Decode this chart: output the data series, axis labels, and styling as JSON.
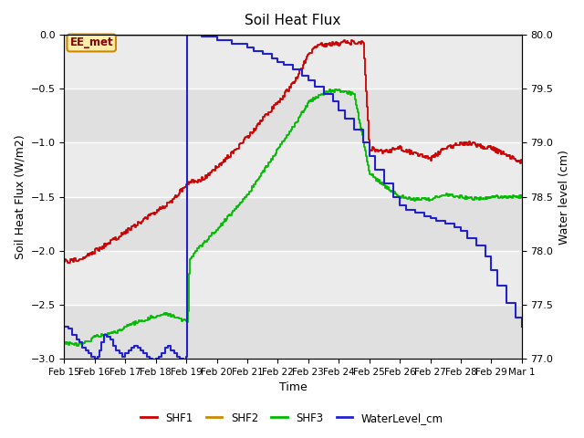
{
  "title": "Soil Heat Flux",
  "xlabel": "Time",
  "ylabel_left": "Soil Heat Flux (W/m2)",
  "ylabel_right": "Water level (cm)",
  "annotation_text": "EE_met",
  "ylim_left": [
    -3.0,
    0.0
  ],
  "ylim_right": [
    77.0,
    80.0
  ],
  "yticks_left": [
    0.0,
    -0.5,
    -1.0,
    -1.5,
    -2.0,
    -2.5,
    -3.0
  ],
  "yticks_right": [
    77.0,
    77.5,
    78.0,
    78.5,
    79.0,
    79.5,
    80.0
  ],
  "xtick_labels": [
    "Feb 15",
    "Feb 16",
    "Feb 17",
    "Feb 18",
    "Feb 19",
    "Feb 20",
    "Feb 21",
    "Feb 22",
    "Feb 23",
    "Feb 24",
    "Feb 25",
    "Feb 26",
    "Feb 27",
    "Feb 28",
    "Feb 29",
    "Mar 1"
  ],
  "bg_color": "#e8e8e8",
  "bg_stripe_color": "#d8d8d8",
  "shf1_color": "#cc0000",
  "shf2_color": "#cc8800",
  "shf3_color": "#00bb00",
  "wl_color": "#2222cc",
  "legend_labels": [
    "SHF1",
    "SHF2",
    "SHF3",
    "WaterLevel_cm"
  ],
  "shf2_value": 0.0,
  "grid_color": "#ffffff",
  "title_fontsize": 11,
  "axis_fontsize": 9,
  "tick_fontsize": 8,
  "xtick_fontsize": 7.5,
  "linewidth": 1.5,
  "shf1_knots_t": [
    0,
    0.5,
    1,
    1.5,
    2,
    2.5,
    3,
    3.5,
    4,
    4.3,
    4.6,
    5,
    5.5,
    6,
    6.5,
    7,
    7.5,
    8,
    8.3,
    8.7,
    9,
    9.1,
    9.5,
    9.8,
    10,
    10.5,
    11,
    11.5,
    12,
    12.5,
    13,
    13.5,
    14,
    14.5,
    15
  ],
  "shf1_knots_v": [
    -2.1,
    -2.08,
    -2.0,
    -1.92,
    -1.82,
    -1.73,
    -1.63,
    -1.55,
    -1.38,
    -1.35,
    -1.33,
    -1.22,
    -1.1,
    -0.95,
    -0.78,
    -0.62,
    -0.45,
    -0.18,
    -0.1,
    -0.08,
    -0.08,
    -0.07,
    -0.07,
    -0.08,
    -1.05,
    -1.08,
    -1.05,
    -1.1,
    -1.15,
    -1.05,
    -1.0,
    -1.02,
    -1.05,
    -1.12,
    -1.18
  ],
  "shf3_knots_t": [
    0,
    0.3,
    0.7,
    1,
    1.3,
    1.7,
    2,
    2.5,
    3,
    3.3,
    3.7,
    4,
    4.05,
    4.1,
    4.3,
    4.6,
    5,
    5.5,
    6,
    6.5,
    7,
    7.5,
    8,
    8.3,
    8.7,
    9,
    9.1,
    9.5,
    10,
    10.5,
    11,
    11.5,
    12,
    12.5,
    13,
    13.5,
    14,
    14.5,
    15
  ],
  "shf3_knots_v": [
    -2.85,
    -2.87,
    -2.85,
    -2.8,
    -2.78,
    -2.75,
    -2.7,
    -2.65,
    -2.6,
    -2.58,
    -2.62,
    -2.65,
    -2.65,
    -2.08,
    -2.0,
    -1.92,
    -1.8,
    -1.65,
    -1.48,
    -1.28,
    -1.05,
    -0.85,
    -0.62,
    -0.57,
    -0.52,
    -0.52,
    -0.53,
    -0.55,
    -1.28,
    -1.4,
    -1.5,
    -1.52,
    -1.52,
    -1.48,
    -1.5,
    -1.52,
    -1.5,
    -1.5,
    -1.5
  ],
  "wl_t": [
    0,
    0.15,
    0.25,
    0.4,
    0.5,
    0.6,
    0.7,
    0.8,
    0.9,
    1.0,
    1.1,
    1.15,
    1.2,
    1.3,
    1.4,
    1.5,
    1.6,
    1.7,
    1.8,
    1.9,
    2.0,
    2.1,
    2.2,
    2.3,
    2.4,
    2.5,
    2.6,
    2.7,
    2.8,
    2.9,
    3.0,
    3.1,
    3.2,
    3.3,
    3.4,
    3.5,
    3.6,
    3.7,
    3.8,
    3.9,
    4.0,
    4.01,
    4.02,
    4.5,
    5,
    5.5,
    6,
    6.2,
    6.5,
    6.8,
    7,
    7.2,
    7.5,
    7.8,
    8,
    8.2,
    8.5,
    8.8,
    9,
    9.2,
    9.5,
    9.8,
    10,
    10.2,
    10.5,
    10.8,
    11,
    11.2,
    11.5,
    11.8,
    12,
    12.2,
    12.5,
    12.8,
    13,
    13.2,
    13.5,
    13.8,
    14,
    14.2,
    14.5,
    14.8,
    15
  ],
  "wl_v": [
    77.3,
    77.28,
    77.22,
    77.18,
    77.15,
    77.1,
    77.08,
    77.05,
    77.02,
    77.0,
    77.02,
    77.08,
    77.15,
    77.22,
    77.2,
    77.18,
    77.12,
    77.08,
    77.05,
    77.02,
    77.05,
    77.08,
    77.1,
    77.12,
    77.1,
    77.08,
    77.05,
    77.02,
    77.0,
    76.98,
    77.0,
    77.02,
    77.05,
    77.1,
    77.12,
    77.08,
    77.05,
    77.02,
    77.0,
    76.98,
    77.0,
    77.02,
    80.0,
    79.98,
    79.95,
    79.92,
    79.88,
    79.85,
    79.82,
    79.78,
    79.75,
    79.72,
    79.68,
    79.62,
    79.58,
    79.52,
    79.45,
    79.38,
    79.3,
    79.22,
    79.12,
    79.0,
    78.88,
    78.75,
    78.62,
    78.5,
    78.42,
    78.38,
    78.35,
    78.32,
    78.3,
    78.28,
    78.25,
    78.22,
    78.18,
    78.12,
    78.05,
    77.95,
    77.82,
    77.68,
    77.52,
    77.38,
    77.3
  ]
}
